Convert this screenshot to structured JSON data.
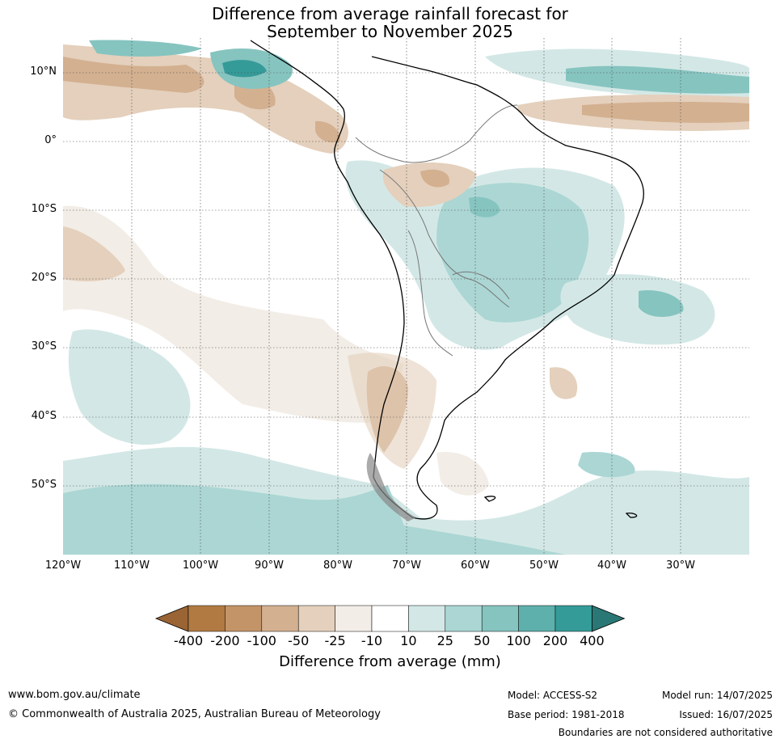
{
  "title": {
    "line1": "Difference from average rainfall forecast for",
    "line2": "September to November 2025"
  },
  "map": {
    "lat_labels": [
      "10°N",
      "0°",
      "10°S",
      "20°S",
      "30°S",
      "40°S",
      "50°S"
    ],
    "lon_labels": [
      "120°W",
      "110°W",
      "100°W",
      "90°W",
      "80°W",
      "70°W",
      "60°W",
      "50°W",
      "40°W",
      "30°W"
    ]
  },
  "colorbar": {
    "ticks": [
      "-400",
      "-200",
      "-100",
      "-50",
      "-25",
      "-10",
      "10",
      "25",
      "50",
      "100",
      "200",
      "400"
    ],
    "colors": [
      "#9a6434",
      "#b07a42",
      "#c39468",
      "#d3b090",
      "#e4d0bc",
      "#f2ede6",
      "#ffffff",
      "#d3e8e6",
      "#abd6d4",
      "#86c4c0",
      "#5eb0ac",
      "#359b98",
      "#2a7876"
    ],
    "label": "Difference from average (mm)"
  },
  "footer": {
    "website": "www.bom.gov.au/climate",
    "copyright": "© Commonwealth of Australia 2025, Australian Bureau of Meteorology",
    "model": "Model: ACCESS-S2",
    "base_period": "Base period: 1981-2018",
    "model_run": "Model run: 14/07/2025",
    "issued": "Issued: 16/07/2025",
    "disclaimer": "Boundaries are not considered authoritative"
  }
}
